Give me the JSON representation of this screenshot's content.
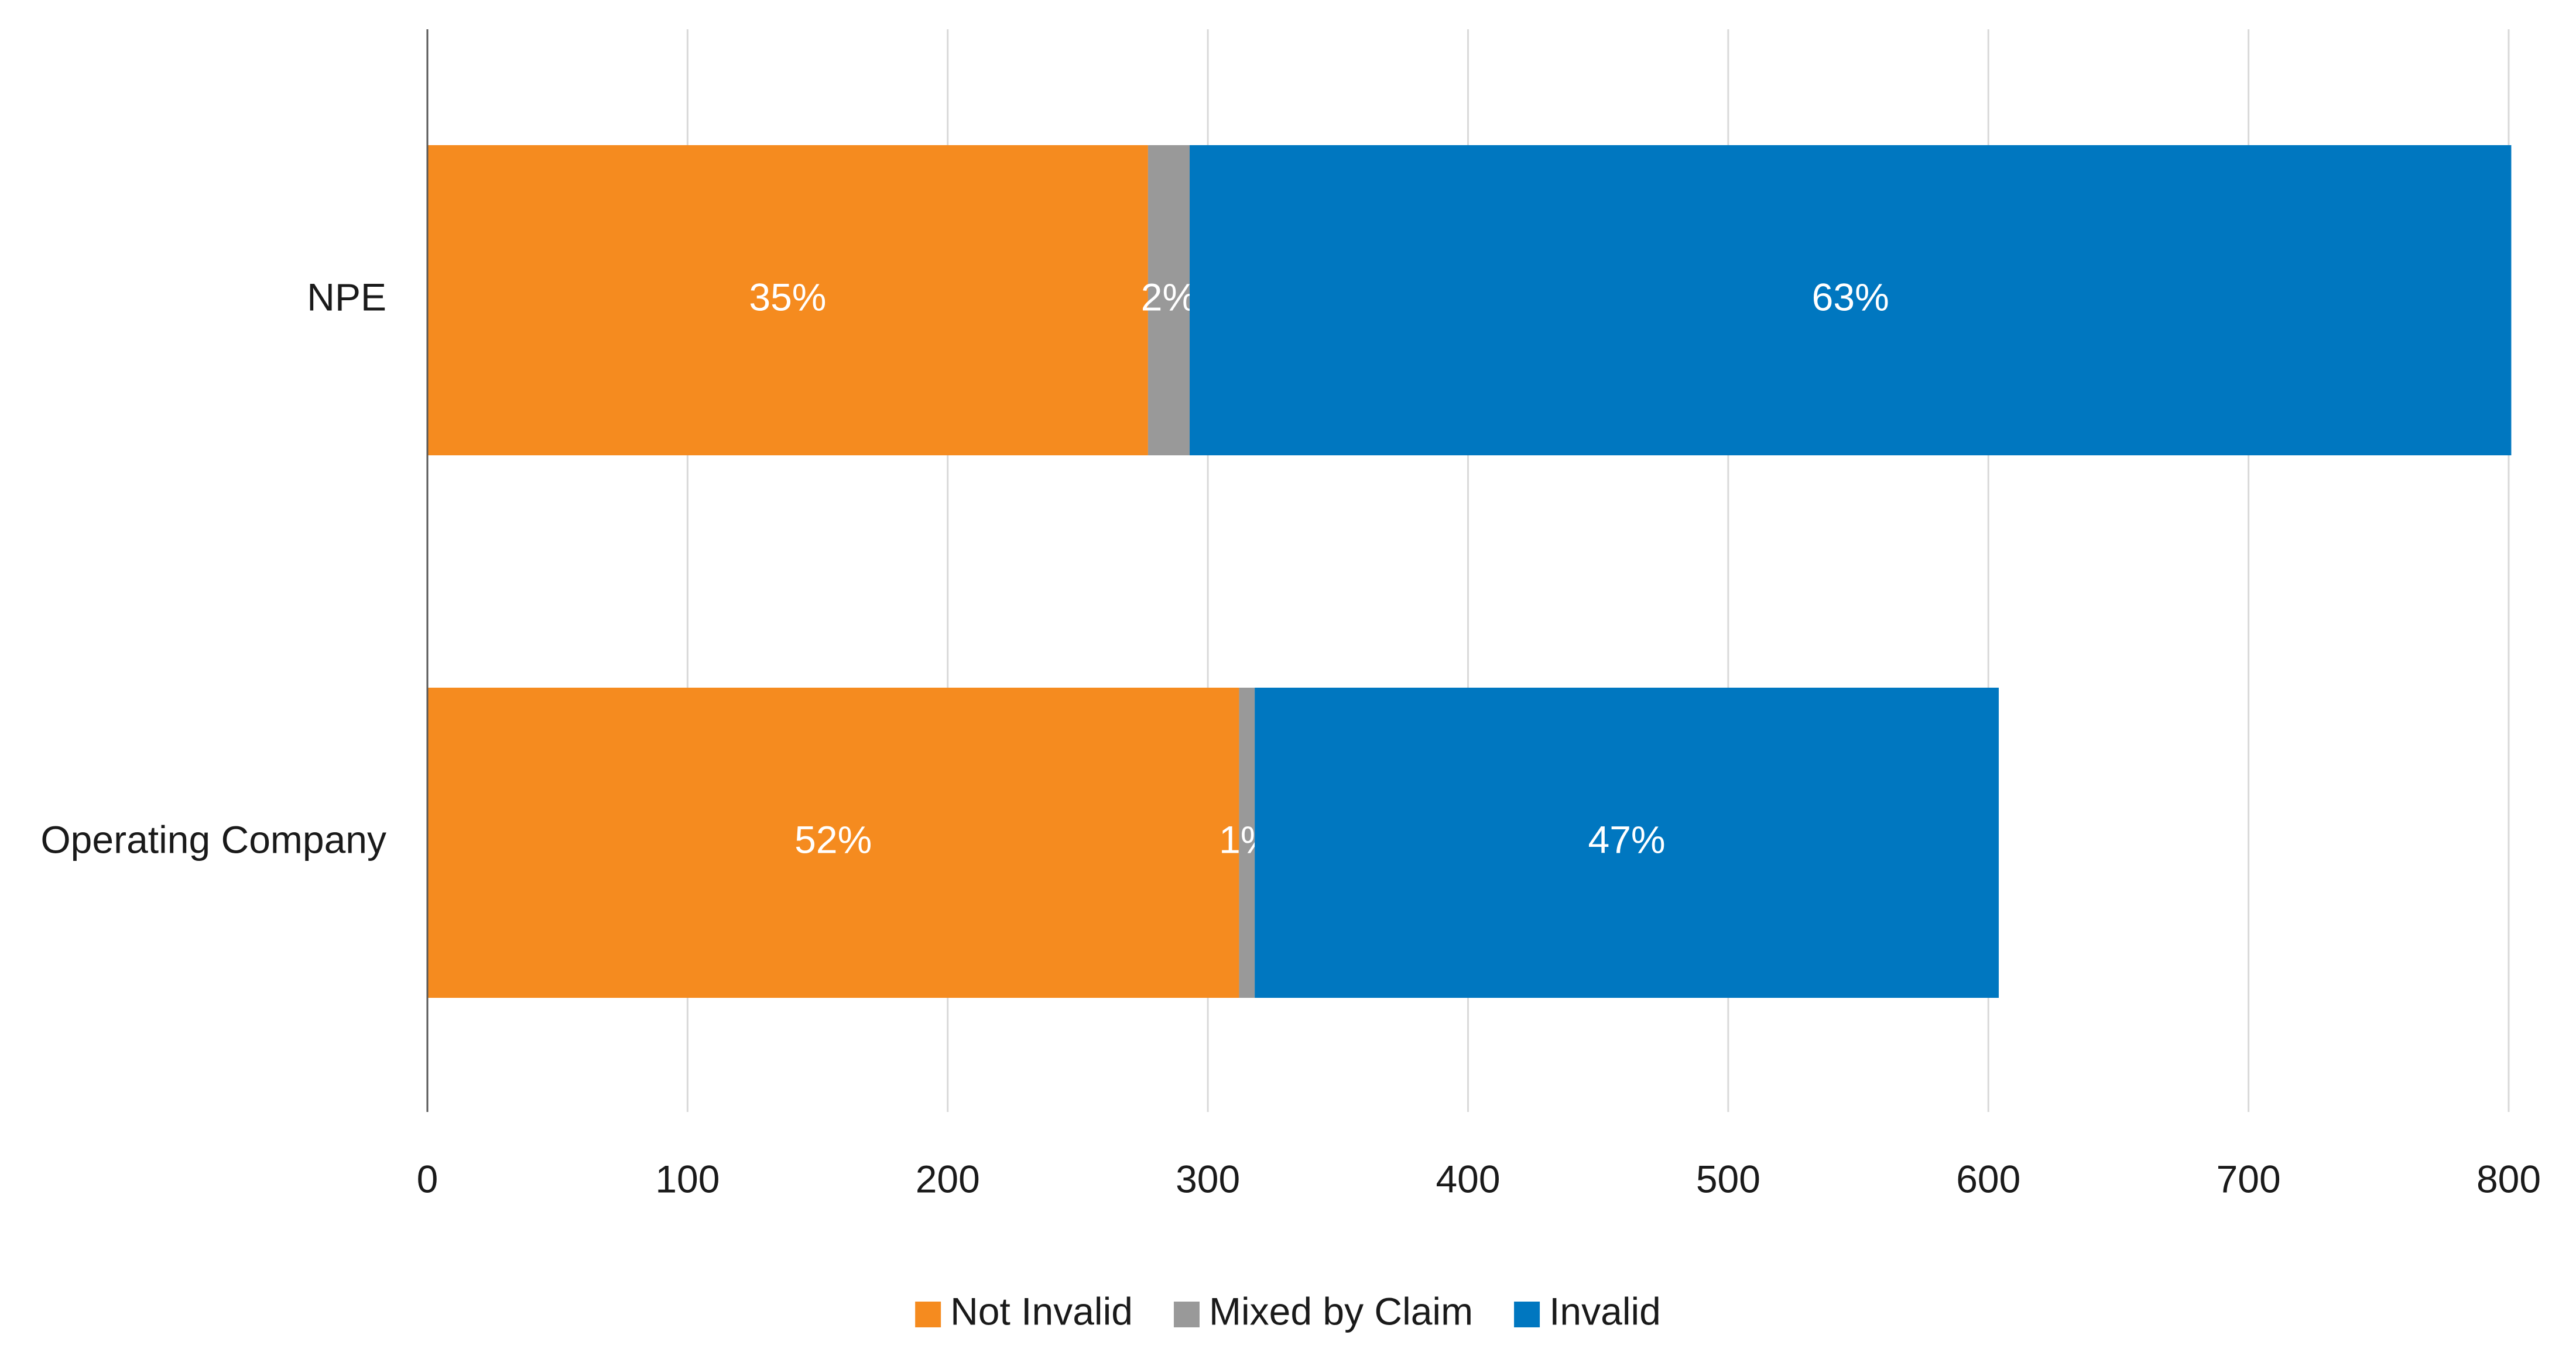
{
  "chart_data": {
    "type": "bar",
    "orientation": "horizontal",
    "stacked": true,
    "title": "",
    "xlabel": "",
    "ylabel": "",
    "categories": [
      "NPE",
      "Operating Company"
    ],
    "series": [
      {
        "name": "Not Invalid",
        "color": "#F58B1F",
        "values": [
          277,
          312
        ],
        "labels": [
          "35%",
          "52%"
        ]
      },
      {
        "name": "Mixed by Claim",
        "color": "#999999",
        "values": [
          16,
          6
        ],
        "labels": [
          "2%",
          "1%"
        ]
      },
      {
        "name": "Invalid",
        "color": "#0077C0",
        "values": [
          508,
          286
        ],
        "labels": [
          "63%",
          "47%"
        ]
      }
    ],
    "xlim": [
      0,
      800
    ],
    "xticks": [
      0,
      100,
      200,
      300,
      400,
      500,
      600,
      700,
      800
    ],
    "grid": true,
    "legend_position": "bottom-center"
  }
}
